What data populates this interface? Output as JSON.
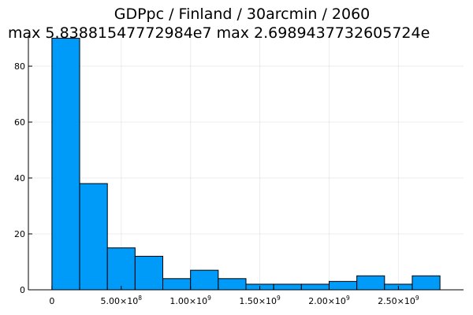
{
  "chart_data": {
    "type": "bar",
    "title": "GDPpc / Finland / 30arcmin / 2060",
    "subtitle": "max 5.83881547772984e7  max 2.6989437732605724e",
    "xlabel": "",
    "ylabel": "",
    "bin_width": 200000000,
    "bins": [
      {
        "start": 0,
        "end": 200000000,
        "count": 90
      },
      {
        "start": 200000000,
        "end": 400000000,
        "count": 38
      },
      {
        "start": 400000000,
        "end": 600000000,
        "count": 15
      },
      {
        "start": 600000000,
        "end": 800000000,
        "count": 12
      },
      {
        "start": 800000000,
        "end": 1000000000,
        "count": 4
      },
      {
        "start": 1000000000,
        "end": 1200000000,
        "count": 7
      },
      {
        "start": 1200000000,
        "end": 1400000000,
        "count": 4
      },
      {
        "start": 1400000000,
        "end": 1600000000,
        "count": 2
      },
      {
        "start": 1600000000,
        "end": 1800000000,
        "count": 2
      },
      {
        "start": 1800000000,
        "end": 2000000000,
        "count": 2
      },
      {
        "start": 2000000000,
        "end": 2200000000,
        "count": 3
      },
      {
        "start": 2200000000,
        "end": 2400000000,
        "count": 5
      },
      {
        "start": 2400000000,
        "end": 2600000000,
        "count": 2
      },
      {
        "start": 2600000000,
        "end": 2800000000,
        "count": 5
      }
    ],
    "xlim": [
      -170000000,
      2970000000
    ],
    "ylim": [
      0,
      91
    ],
    "x_ticks": [
      {
        "value": 0,
        "mantissa": "0",
        "exp": ""
      },
      {
        "value": 500000000,
        "mantissa": "5.00×10",
        "exp": "8"
      },
      {
        "value": 1000000000,
        "mantissa": "1.00×10",
        "exp": "9"
      },
      {
        "value": 1500000000,
        "mantissa": "1.50×10",
        "exp": "9"
      },
      {
        "value": 2000000000,
        "mantissa": "2.00×10",
        "exp": "9"
      },
      {
        "value": 2500000000,
        "mantissa": "2.50×10",
        "exp": "9"
      }
    ],
    "y_ticks": [
      0,
      20,
      40,
      60,
      80
    ],
    "grid": true,
    "legend": "none",
    "bar_color": "#009af9",
    "bar_edge_color": "#000000"
  }
}
